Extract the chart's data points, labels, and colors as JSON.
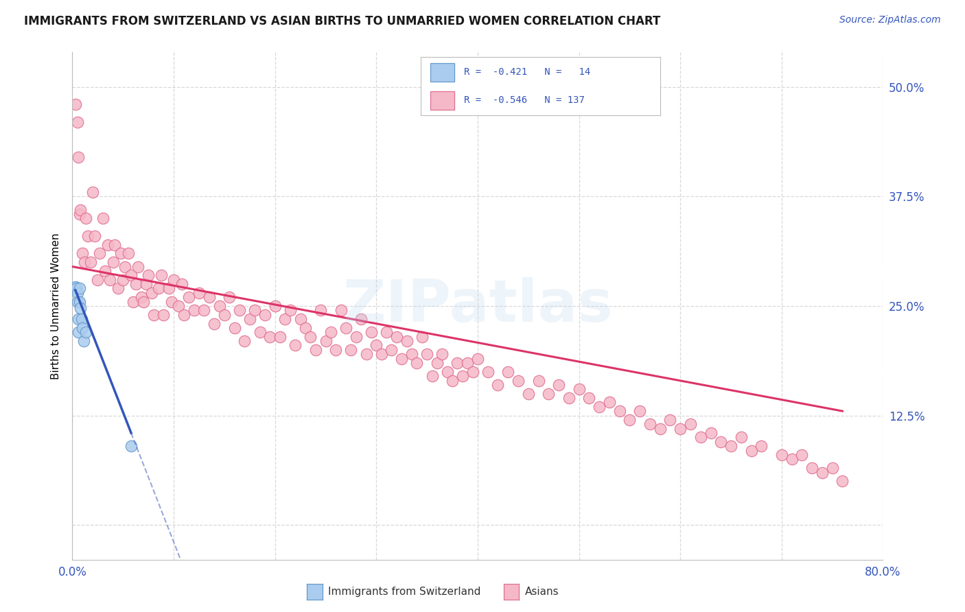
{
  "title": "IMMIGRANTS FROM SWITZERLAND VS ASIAN BIRTHS TO UNMARRIED WOMEN CORRELATION CHART",
  "source": "Source: ZipAtlas.com",
  "ylabel": "Births to Unmarried Women",
  "xlim": [
    0.0,
    0.8
  ],
  "ylim": [
    -0.04,
    0.54
  ],
  "grid_color": "#d8d8d8",
  "background_color": "#ffffff",
  "swiss_color": "#aaccee",
  "swiss_edge": "#6699cc",
  "asian_color": "#f5b8c8",
  "asian_edge": "#e07090",
  "trend_swiss": "#3355bb",
  "trend_asian": "#dd3366",
  "watermark": "ZIPatlas",
  "R_swiss": "-0.421",
  "N_swiss": "14",
  "R_asian": "-0.546",
  "N_asian": "137",
  "swiss_x": [
    0.003,
    0.004,
    0.005,
    0.005,
    0.006,
    0.006,
    0.007,
    0.007,
    0.008,
    0.009,
    0.01,
    0.011,
    0.013,
    0.058
  ],
  "swiss_y": [
    0.272,
    0.27,
    0.265,
    0.255,
    0.235,
    0.22,
    0.27,
    0.255,
    0.248,
    0.235,
    0.225,
    0.21,
    0.22,
    0.09
  ],
  "asian_x": [
    0.003,
    0.005,
    0.006,
    0.007,
    0.008,
    0.01,
    0.012,
    0.013,
    0.015,
    0.018,
    0.02,
    0.022,
    0.025,
    0.027,
    0.03,
    0.032,
    0.035,
    0.037,
    0.04,
    0.042,
    0.045,
    0.048,
    0.05,
    0.052,
    0.055,
    0.058,
    0.06,
    0.063,
    0.065,
    0.068,
    0.07,
    0.073,
    0.075,
    0.078,
    0.08,
    0.085,
    0.088,
    0.09,
    0.095,
    0.098,
    0.1,
    0.105,
    0.108,
    0.11,
    0.115,
    0.12,
    0.125,
    0.13,
    0.135,
    0.14,
    0.145,
    0.15,
    0.155,
    0.16,
    0.165,
    0.17,
    0.175,
    0.18,
    0.185,
    0.19,
    0.195,
    0.2,
    0.205,
    0.21,
    0.215,
    0.22,
    0.225,
    0.23,
    0.235,
    0.24,
    0.245,
    0.25,
    0.255,
    0.26,
    0.265,
    0.27,
    0.275,
    0.28,
    0.285,
    0.29,
    0.295,
    0.3,
    0.305,
    0.31,
    0.315,
    0.32,
    0.325,
    0.33,
    0.335,
    0.34,
    0.345,
    0.35,
    0.355,
    0.36,
    0.365,
    0.37,
    0.375,
    0.38,
    0.385,
    0.39,
    0.395,
    0.4,
    0.41,
    0.42,
    0.43,
    0.44,
    0.45,
    0.46,
    0.47,
    0.48,
    0.49,
    0.5,
    0.51,
    0.52,
    0.53,
    0.54,
    0.55,
    0.56,
    0.57,
    0.58,
    0.59,
    0.6,
    0.61,
    0.62,
    0.63,
    0.64,
    0.65,
    0.66,
    0.67,
    0.68,
    0.7,
    0.71,
    0.72,
    0.73,
    0.74,
    0.75,
    0.76
  ],
  "asian_y": [
    0.48,
    0.46,
    0.42,
    0.355,
    0.36,
    0.31,
    0.3,
    0.35,
    0.33,
    0.3,
    0.38,
    0.33,
    0.28,
    0.31,
    0.35,
    0.29,
    0.32,
    0.28,
    0.3,
    0.32,
    0.27,
    0.31,
    0.28,
    0.295,
    0.31,
    0.285,
    0.255,
    0.275,
    0.295,
    0.26,
    0.255,
    0.275,
    0.285,
    0.265,
    0.24,
    0.27,
    0.285,
    0.24,
    0.27,
    0.255,
    0.28,
    0.25,
    0.275,
    0.24,
    0.26,
    0.245,
    0.265,
    0.245,
    0.26,
    0.23,
    0.25,
    0.24,
    0.26,
    0.225,
    0.245,
    0.21,
    0.235,
    0.245,
    0.22,
    0.24,
    0.215,
    0.25,
    0.215,
    0.235,
    0.245,
    0.205,
    0.235,
    0.225,
    0.215,
    0.2,
    0.245,
    0.21,
    0.22,
    0.2,
    0.245,
    0.225,
    0.2,
    0.215,
    0.235,
    0.195,
    0.22,
    0.205,
    0.195,
    0.22,
    0.2,
    0.215,
    0.19,
    0.21,
    0.195,
    0.185,
    0.215,
    0.195,
    0.17,
    0.185,
    0.195,
    0.175,
    0.165,
    0.185,
    0.17,
    0.185,
    0.175,
    0.19,
    0.175,
    0.16,
    0.175,
    0.165,
    0.15,
    0.165,
    0.15,
    0.16,
    0.145,
    0.155,
    0.145,
    0.135,
    0.14,
    0.13,
    0.12,
    0.13,
    0.115,
    0.11,
    0.12,
    0.11,
    0.115,
    0.1,
    0.105,
    0.095,
    0.09,
    0.1,
    0.085,
    0.09,
    0.08,
    0.075,
    0.08,
    0.065,
    0.06,
    0.065,
    0.05
  ],
  "trend_asian_x0": 0.0,
  "trend_asian_y0": 0.295,
  "trend_asian_x1": 0.76,
  "trend_asian_y1": 0.13,
  "trend_swiss_x0": 0.003,
  "trend_swiss_y0": 0.268,
  "trend_swiss_x1": 0.058,
  "trend_swiss_y1": 0.105
}
